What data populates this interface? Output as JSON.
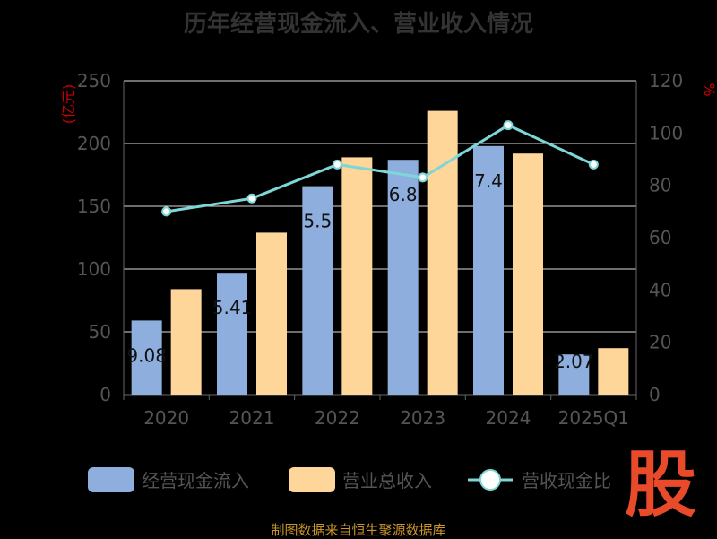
{
  "title": "历年经营现金流入、营业收入情况",
  "source": "制图数据来自恒生聚源数据库",
  "logo_text": "股",
  "colors": {
    "background": "#000000",
    "bar_cash": "#8eaedd",
    "bar_revenue": "#ffd699",
    "line_ratio": "#7fd6d6",
    "axis_text": "#555555",
    "axis_unit": "#cc0000",
    "grid": "#dddddd"
  },
  "chart_data": {
    "type": "bar",
    "categories": [
      "2020",
      "2021",
      "2022",
      "2023",
      "2024",
      "2025Q1"
    ],
    "series": [
      {
        "name": "经营现金流入",
        "kind": "bar",
        "axis": "left",
        "values": [
          59,
          97,
          166,
          187,
          198,
          32
        ]
      },
      {
        "name": "营业总收入",
        "kind": "bar",
        "axis": "left",
        "values": [
          84,
          129,
          189,
          226,
          192,
          37
        ]
      },
      {
        "name": "营收现金比",
        "kind": "line",
        "axis": "right",
        "values": [
          70,
          75,
          88,
          83,
          103,
          88
        ]
      }
    ],
    "data_labels": [
      "9.08",
      "5.41",
      "5.5",
      "6.8",
      "7.4",
      "2.07"
    ],
    "left_axis": {
      "unit": "亿元",
      "ylim": [
        0,
        250
      ],
      "ticks": [
        0,
        50,
        100,
        150,
        200,
        250
      ]
    },
    "right_axis": {
      "unit": "%",
      "ylim": [
        0,
        120
      ],
      "ticks": [
        0,
        20,
        40,
        60,
        80,
        100,
        120
      ]
    },
    "grid": true,
    "legend_position": "bottom"
  }
}
